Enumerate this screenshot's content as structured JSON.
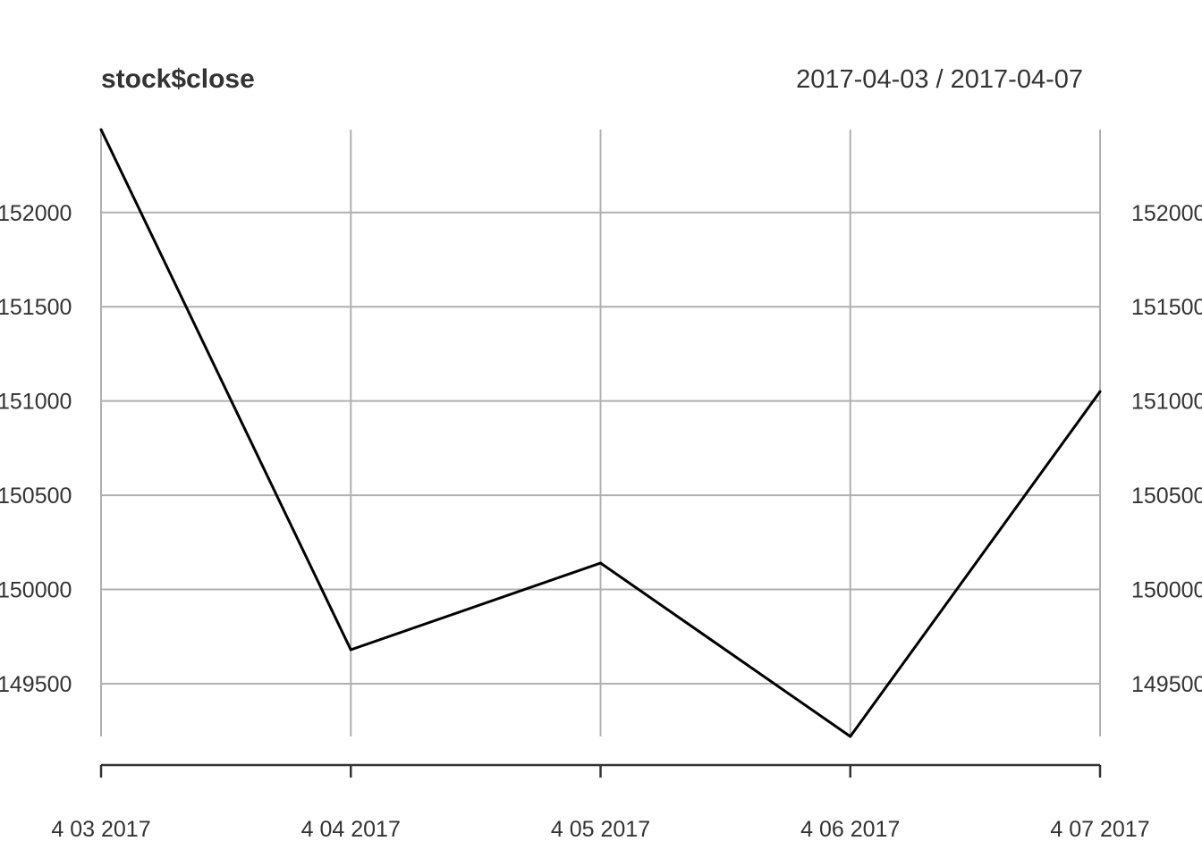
{
  "chart_data": {
    "type": "line",
    "title": "stock$close",
    "date_range": "2017-04-03 / 2017-04-07",
    "x": [
      "2017-04-03",
      "2017-04-04",
      "2017-04-05",
      "2017-04-06",
      "2017-04-07"
    ],
    "x_tick_labels": [
      "4 03 2017",
      "4 04 2017",
      "4 05 2017",
      "4 06 2017",
      "4 07 2017"
    ],
    "series": [
      {
        "name": "close",
        "values": [
          152440,
          149680,
          150140,
          149220,
          151050
        ],
        "color": "#000000"
      }
    ],
    "y_ticks": [
      149500,
      150000,
      150500,
      151000,
      151500,
      152000
    ],
    "y_tick_labels": [
      "149500",
      "150000",
      "150500",
      "151000",
      "151500",
      "152000"
    ],
    "ylim": [
      149220,
      152440
    ],
    "grid": true,
    "xlabel": "",
    "ylabel": ""
  }
}
